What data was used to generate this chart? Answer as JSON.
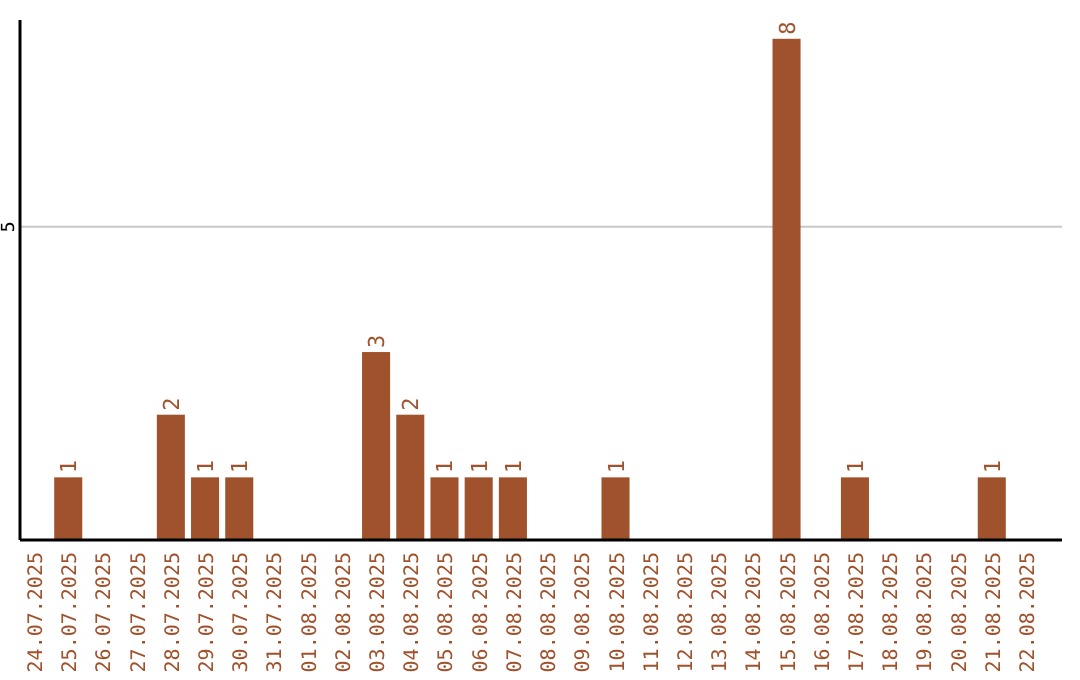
{
  "chart_data": {
    "type": "bar",
    "categories": [
      "24.07.2025",
      "25.07.2025",
      "26.07.2025",
      "27.07.2025",
      "28.07.2025",
      "29.07.2025",
      "30.07.2025",
      "31.07.2025",
      "01.08.2025",
      "02.08.2025",
      "03.08.2025",
      "04.08.2025",
      "05.08.2025",
      "06.08.2025",
      "07.08.2025",
      "08.08.2025",
      "09.08.2025",
      "10.08.2025",
      "11.08.2025",
      "12.08.2025",
      "13.08.2025",
      "14.08.2025",
      "15.08.2025",
      "16.08.2025",
      "17.08.2025",
      "18.08.2025",
      "19.08.2025",
      "20.08.2025",
      "21.08.2025",
      "22.08.2025"
    ],
    "values": [
      0,
      1,
      0,
      0,
      2,
      1,
      1,
      0,
      0,
      0,
      3,
      2,
      1,
      1,
      1,
      0,
      0,
      1,
      0,
      0,
      0,
      0,
      8,
      0,
      1,
      0,
      0,
      0,
      1,
      0
    ],
    "value_labels": [
      null,
      "1",
      null,
      null,
      "2",
      "1",
      "1",
      null,
      null,
      null,
      "3",
      "2",
      "1",
      "1",
      "1",
      null,
      null,
      "1",
      null,
      null,
      null,
      null,
      "8",
      null,
      "1",
      null,
      null,
      null,
      "1",
      null
    ],
    "color": "#a0522d",
    "ylim": [
      0,
      8.3
    ],
    "yticks": [
      5
    ],
    "grid": "y"
  }
}
